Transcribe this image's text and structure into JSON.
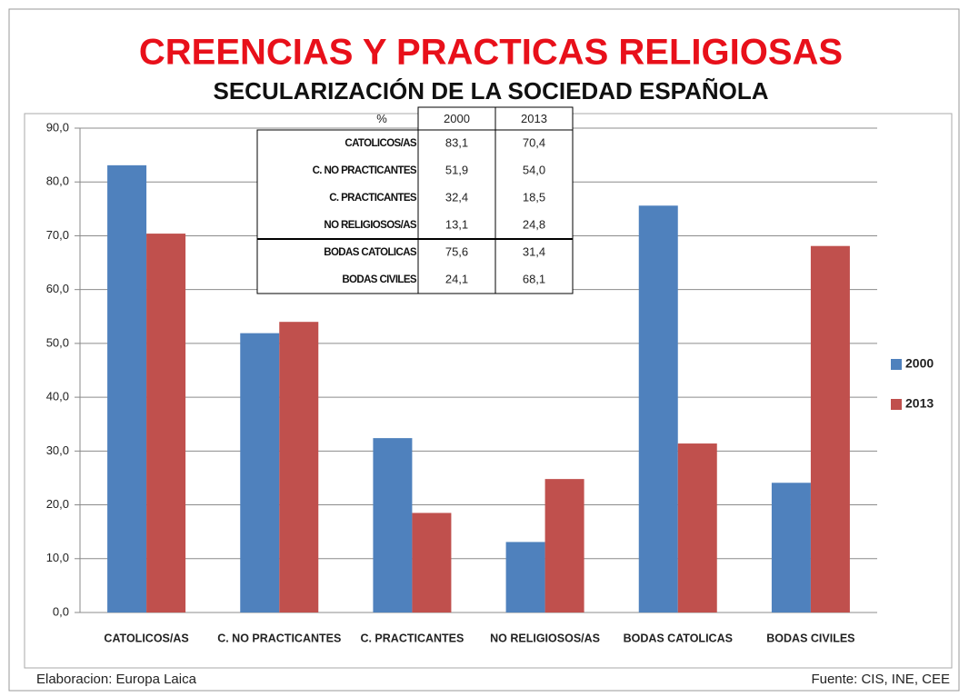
{
  "chart_data": {
    "type": "bar",
    "title": "CREENCIAS Y PRACTICAS RELIGIOSAS",
    "subtitle": "SECULARIZACIÓN DE LA SOCIEDAD ESPAÑOLA",
    "categories": [
      "CATOLICOS/AS",
      "C. NO PRACTICANTES",
      "C. PRACTICANTES",
      "NO RELIGIOSOS/AS",
      "BODAS CATOLICAS",
      "BODAS CIVILES"
    ],
    "series": [
      {
        "name": "2000",
        "color": "#4f81bd",
        "values": [
          83.1,
          51.9,
          32.4,
          13.1,
          75.6,
          24.1
        ]
      },
      {
        "name": "2013",
        "color": "#c0504d",
        "values": [
          70.4,
          54.0,
          18.5,
          24.8,
          31.4,
          68.1
        ]
      }
    ],
    "ylim": [
      0,
      90
    ],
    "yticks": [
      {
        "value": 0,
        "label": "0,0"
      },
      {
        "value": 10,
        "label": "10,0"
      },
      {
        "value": 20,
        "label": "20,0"
      },
      {
        "value": 30,
        "label": "30,0"
      },
      {
        "value": 40,
        "label": "40,0"
      },
      {
        "value": 50,
        "label": "50,0"
      },
      {
        "value": 60,
        "label": "60,0"
      },
      {
        "value": 70,
        "label": "70,0"
      },
      {
        "value": 80,
        "label": "80,0"
      },
      {
        "value": 90,
        "label": "90,0"
      }
    ],
    "grid": true,
    "legend": "right"
  },
  "table": {
    "header": [
      "%",
      "2000",
      "2013"
    ],
    "rows": [
      [
        "CATOLICOS/AS",
        "83,1",
        "70,4"
      ],
      [
        "C. NO PRACTICANTES",
        "51,9",
        "54,0"
      ],
      [
        "C. PRACTICANTES",
        "32,4",
        "18,5"
      ],
      [
        "NO RELIGIOSOS/AS",
        "13,1",
        "24,8"
      ],
      [
        "BODAS CATOLICAS",
        "75,6",
        "31,4"
      ],
      [
        "BODAS CIVILES",
        "24,1",
        "68,1"
      ]
    ]
  },
  "footer": {
    "left": "Elaboracion: Europa Laica",
    "right": "Fuente: CIS, INE, CEE"
  }
}
